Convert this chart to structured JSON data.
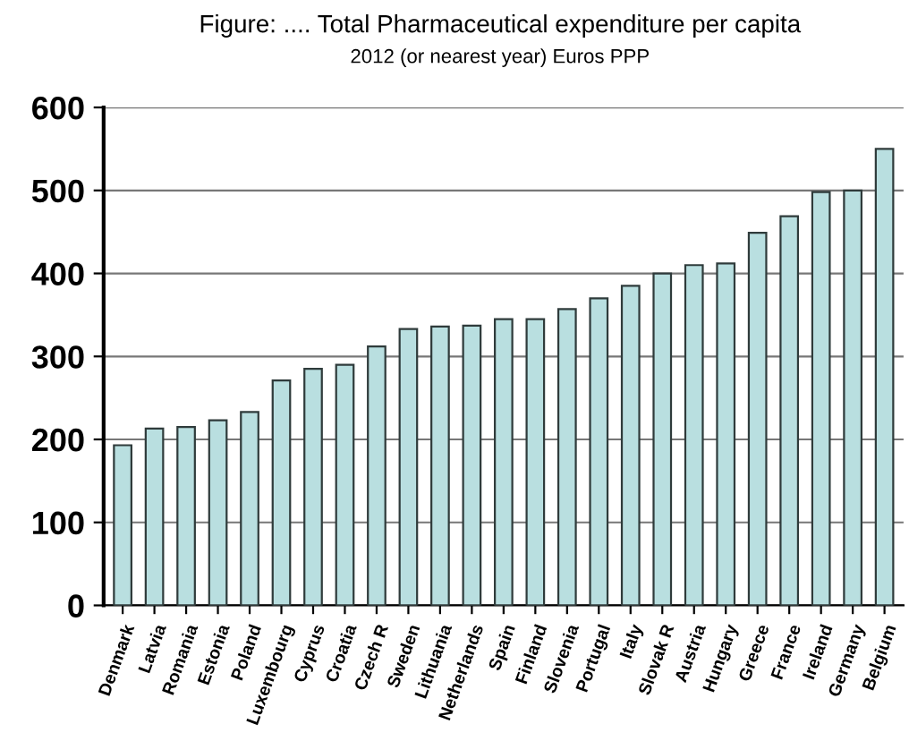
{
  "chart_data": {
    "type": "bar",
    "title": "Figure: .... Total Pharmaceutical expenditure per capita",
    "subtitle": "2012 (or nearest year) Euros PPP",
    "categories": [
      "Denmark",
      "Latvia",
      "Romania",
      "Estonia",
      "Poland",
      "Luxembourg",
      "Cyprus",
      "Croatia",
      "Czech R",
      "Sweden",
      "Lithuania",
      "Netherlands",
      "Spain",
      "Finland",
      "Slovenia",
      "Portugal",
      "Italy",
      "Slovak R",
      "Austria",
      "Hungary",
      "Greece",
      "France",
      "Ireland",
      "Germany",
      "Belgium"
    ],
    "values": [
      193,
      213,
      215,
      223,
      233,
      271,
      285,
      290,
      312,
      333,
      336,
      337,
      345,
      345,
      357,
      370,
      385,
      400,
      410,
      412,
      449,
      469,
      498,
      500,
      550
    ],
    "color": "#b9dfe0",
    "ylim": [
      0,
      600
    ],
    "yticks": [
      0,
      100,
      200,
      300,
      400,
      500,
      600
    ],
    "grid": "y",
    "legend": false
  }
}
